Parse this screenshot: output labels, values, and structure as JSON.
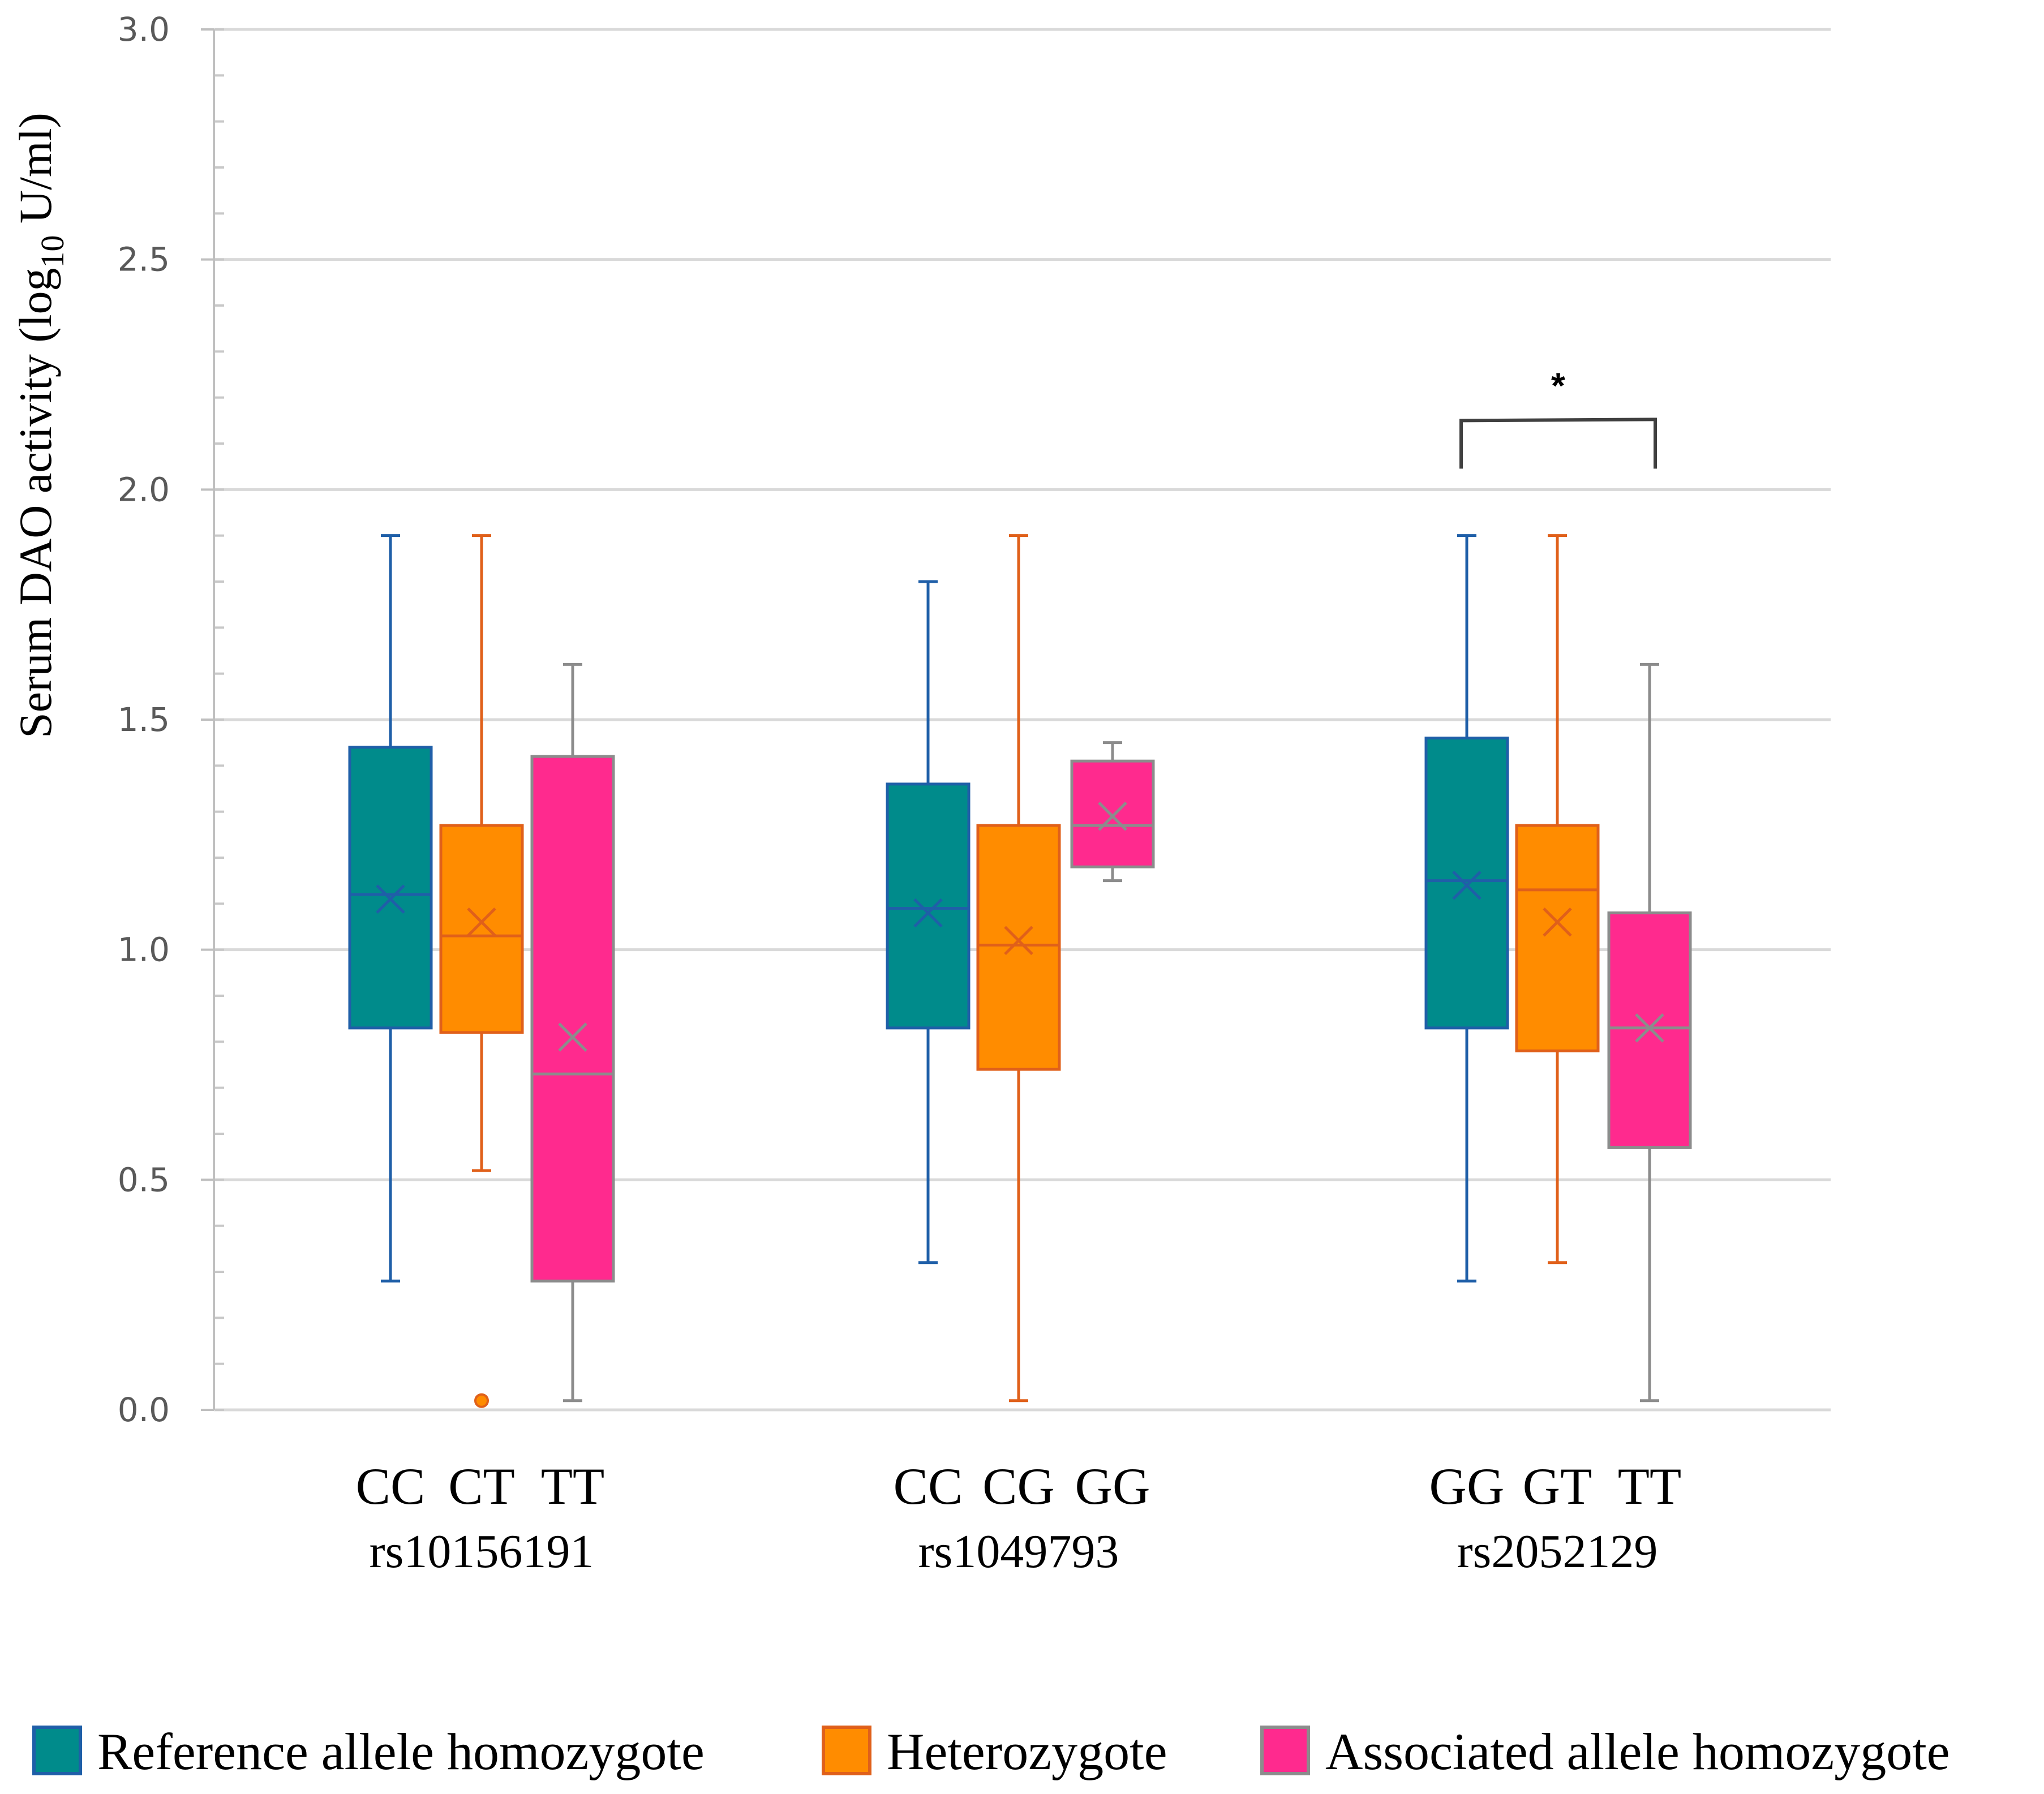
{
  "chart_data": {
    "type": "box",
    "ylabel_main": "Serum DAO activity (log",
    "ylabel_sub": "10",
    "ylabel_end": " U/ml)",
    "ylim": [
      0,
      3.0
    ],
    "yticks": [
      "0.0",
      "0.5",
      "1.0",
      "1.5",
      "2.0",
      "2.5",
      "3.0"
    ],
    "grid": true,
    "legend_position": "bottom",
    "series": [
      {
        "name": "Reference allele homozygote",
        "fill": "#008B8B",
        "stroke": "#1F5FA8"
      },
      {
        "name": "Heterozygote",
        "fill": "#FF8C00",
        "stroke": "#E0601A"
      },
      {
        "name": "Associated allele homozygote",
        "fill": "#FF2A8E",
        "stroke": "#8C8C8C"
      }
    ],
    "groups": [
      {
        "name": "rs10156191",
        "boxes": [
          {
            "label": "CC",
            "series": 0,
            "min": 0.28,
            "q1": 0.83,
            "median": 1.12,
            "q3": 1.44,
            "max": 1.9,
            "mean": 1.11,
            "outliers": []
          },
          {
            "label": "CT",
            "series": 1,
            "min": 0.52,
            "q1": 0.82,
            "median": 1.03,
            "q3": 1.27,
            "max": 1.9,
            "mean": 1.06,
            "outliers": [
              0.02
            ]
          },
          {
            "label": "TT",
            "series": 2,
            "min": 0.02,
            "q1": 0.28,
            "median": 0.73,
            "q3": 1.42,
            "max": 1.62,
            "mean": 0.81,
            "outliers": []
          }
        ]
      },
      {
        "name": "rs1049793",
        "boxes": [
          {
            "label": "CC",
            "series": 0,
            "min": 0.32,
            "q1": 0.83,
            "median": 1.09,
            "q3": 1.36,
            "max": 1.8,
            "mean": 1.08,
            "outliers": []
          },
          {
            "label": "CG",
            "series": 1,
            "min": 0.02,
            "q1": 0.74,
            "median": 1.01,
            "q3": 1.27,
            "max": 1.9,
            "mean": 1.02,
            "outliers": []
          },
          {
            "label": "GG",
            "series": 2,
            "min": 1.15,
            "q1": 1.18,
            "median": 1.27,
            "q3": 1.41,
            "max": 1.45,
            "mean": 1.29,
            "outliers": []
          }
        ]
      },
      {
        "name": "rs2052129",
        "boxes": [
          {
            "label": "GG",
            "series": 0,
            "min": 0.28,
            "q1": 0.83,
            "median": 1.15,
            "q3": 1.46,
            "max": 1.9,
            "mean": 1.14,
            "outliers": []
          },
          {
            "label": "GT",
            "series": 1,
            "min": 0.32,
            "q1": 0.78,
            "median": 1.13,
            "q3": 1.27,
            "max": 1.9,
            "mean": 1.06,
            "outliers": []
          },
          {
            "label": "TT",
            "series": 2,
            "min": 0.02,
            "q1": 0.57,
            "median": 0.83,
            "q3": 1.08,
            "max": 1.62,
            "mean": 0.83,
            "outliers": []
          }
        ]
      }
    ],
    "significance": {
      "label": "*",
      "group": 2,
      "from_box": 0,
      "to_box": 2,
      "y": 2.15
    }
  }
}
